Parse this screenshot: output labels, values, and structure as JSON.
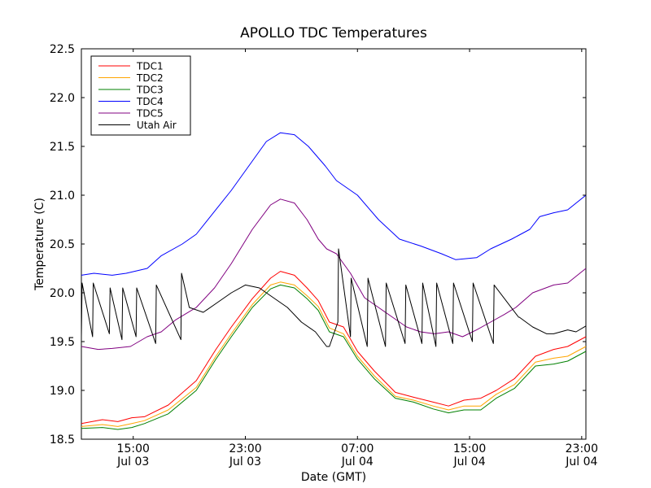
{
  "chart_data": {
    "type": "line",
    "title": "APOLLO TDC Temperatures",
    "xlabel": "Date (GMT)",
    "ylabel": "Temperature (C)",
    "ylim": [
      18.5,
      22.5
    ],
    "xlim": [
      11.3,
      47.3
    ],
    "x_units": "hours since Jul 03 00:00 GMT",
    "grid": false,
    "legend_position": "top-left",
    "y_ticks": [
      {
        "value": 18.5,
        "label": "18.5"
      },
      {
        "value": 19.0,
        "label": "19.0"
      },
      {
        "value": 19.5,
        "label": "19.5"
      },
      {
        "value": 20.0,
        "label": "20.0"
      },
      {
        "value": 20.5,
        "label": "20.5"
      },
      {
        "value": 21.0,
        "label": "21.0"
      },
      {
        "value": 21.5,
        "label": "21.5"
      },
      {
        "value": 22.0,
        "label": "22.0"
      },
      {
        "value": 22.5,
        "label": "22.5"
      }
    ],
    "x_ticks": [
      {
        "value": 15,
        "label": "15:00",
        "sublabel": "Jul 03"
      },
      {
        "value": 23,
        "label": "23:00",
        "sublabel": "Jul 03"
      },
      {
        "value": 31,
        "label": "07:00",
        "sublabel": "Jul 04"
      },
      {
        "value": 39,
        "label": "15:00",
        "sublabel": "Jul 04"
      },
      {
        "value": 47,
        "label": "23:00",
        "sublabel": "Jul 04"
      }
    ],
    "series": [
      {
        "name": "TDC1",
        "color": "#ff0000",
        "x": [
          11.3,
          12.8,
          13.9,
          14.9,
          15.8,
          17.5,
          19.5,
          20.9,
          22.0,
          23.5,
          24.8,
          25.5,
          26.5,
          27.4,
          28.2,
          29.0,
          30.0,
          31.0,
          32.2,
          33.7,
          35.0,
          36.4,
          37.5,
          38.6,
          39.8,
          40.9,
          42.2,
          43.7,
          45.0,
          46.0,
          47.3
        ],
        "y": [
          18.66,
          18.7,
          18.68,
          18.72,
          18.73,
          18.85,
          19.1,
          19.42,
          19.65,
          19.94,
          20.15,
          20.22,
          20.18,
          20.05,
          19.92,
          19.7,
          19.65,
          19.4,
          19.2,
          18.98,
          18.93,
          18.88,
          18.84,
          18.9,
          18.92,
          19.0,
          19.12,
          19.35,
          19.42,
          19.45,
          19.55
        ]
      },
      {
        "name": "TDC2",
        "color": "#ffa500",
        "x": [
          11.3,
          12.8,
          13.9,
          14.9,
          15.8,
          17.5,
          19.5,
          20.9,
          22.0,
          23.5,
          24.8,
          25.5,
          26.5,
          27.4,
          28.2,
          29.0,
          30.0,
          31.0,
          32.2,
          33.7,
          35.0,
          36.4,
          37.5,
          38.6,
          39.8,
          40.9,
          42.2,
          43.7,
          45.0,
          46.0,
          47.3
        ],
        "y": [
          18.63,
          18.65,
          18.63,
          18.66,
          18.69,
          18.8,
          19.03,
          19.35,
          19.58,
          19.88,
          20.08,
          20.11,
          20.08,
          19.97,
          19.86,
          19.64,
          19.58,
          19.35,
          19.15,
          18.94,
          18.9,
          18.84,
          18.8,
          18.84,
          18.84,
          18.96,
          19.06,
          19.29,
          19.33,
          19.35,
          19.45
        ]
      },
      {
        "name": "TDC3",
        "color": "#008000",
        "x": [
          11.3,
          12.8,
          13.9,
          14.9,
          15.8,
          17.5,
          19.5,
          20.9,
          22.0,
          23.5,
          24.8,
          25.5,
          26.5,
          27.4,
          28.2,
          29.0,
          30.0,
          31.0,
          32.2,
          33.7,
          35.0,
          36.4,
          37.5,
          38.6,
          39.8,
          40.9,
          42.2,
          43.7,
          45.0,
          46.0,
          47.3
        ],
        "y": [
          18.61,
          18.62,
          18.6,
          18.62,
          18.66,
          18.76,
          19.0,
          19.32,
          19.55,
          19.85,
          20.04,
          20.08,
          20.05,
          19.94,
          19.82,
          19.6,
          19.55,
          19.32,
          19.12,
          18.92,
          18.88,
          18.81,
          18.77,
          18.8,
          18.8,
          18.92,
          19.02,
          19.25,
          19.27,
          19.3,
          19.4
        ]
      },
      {
        "name": "TDC4",
        "color": "#0000ff",
        "x": [
          11.3,
          12.2,
          13.5,
          14.5,
          16.0,
          17.0,
          18.5,
          19.5,
          20.5,
          22.0,
          23.5,
          24.5,
          25.5,
          26.5,
          27.5,
          28.7,
          29.5,
          31.0,
          32.5,
          34.0,
          35.5,
          37.0,
          38.0,
          39.5,
          40.5,
          42.0,
          43.3,
          44.0,
          45.0,
          46.0,
          47.3
        ],
        "y": [
          20.18,
          20.2,
          20.18,
          20.2,
          20.25,
          20.38,
          20.5,
          20.6,
          20.78,
          21.05,
          21.35,
          21.55,
          21.64,
          21.62,
          21.5,
          21.3,
          21.15,
          21.0,
          20.75,
          20.55,
          20.48,
          20.4,
          20.34,
          20.36,
          20.45,
          20.55,
          20.65,
          20.78,
          20.82,
          20.85,
          21.0
        ]
      },
      {
        "name": "TDC5",
        "color": "#800080",
        "x": [
          11.3,
          12.5,
          13.5,
          14.8,
          16.0,
          17.0,
          18.0,
          19.5,
          20.8,
          22.0,
          23.5,
          24.8,
          25.5,
          26.5,
          27.4,
          28.2,
          28.8,
          29.5,
          30.5,
          31.5,
          32.5,
          33.5,
          34.5,
          35.5,
          36.5,
          37.5,
          38.5,
          39.5,
          40.5,
          41.5,
          42.3,
          43.5,
          45.0,
          46.0,
          47.3
        ],
        "y": [
          19.45,
          19.42,
          19.43,
          19.45,
          19.55,
          19.6,
          19.72,
          19.85,
          20.05,
          20.3,
          20.65,
          20.9,
          20.96,
          20.92,
          20.75,
          20.55,
          20.45,
          20.4,
          20.2,
          19.95,
          19.85,
          19.75,
          19.65,
          19.6,
          19.58,
          19.6,
          19.55,
          19.62,
          19.7,
          19.78,
          19.85,
          20.0,
          20.08,
          20.1,
          20.25
        ]
      },
      {
        "name": "Utah Air",
        "color": "#000000",
        "x": [
          11.3,
          11.35,
          12.1,
          12.15,
          13.3,
          13.35,
          14.2,
          14.25,
          15.2,
          15.25,
          16.6,
          16.65,
          18.4,
          18.45,
          19.0,
          20.0,
          21.0,
          22.0,
          23.0,
          24.0,
          25.0,
          26.0,
          27.0,
          28.0,
          28.8,
          29.0,
          29.6,
          29.65,
          30.5,
          30.55,
          31.7,
          31.75,
          33.0,
          33.05,
          34.4,
          34.45,
          35.6,
          35.65,
          36.6,
          36.65,
          37.8,
          37.85,
          39.2,
          39.25,
          40.7,
          40.75,
          42.5,
          42.55,
          43.5,
          44.5,
          45.0,
          46.0,
          46.6,
          47.3
        ],
        "y": [
          19.55,
          20.1,
          19.55,
          20.1,
          19.58,
          20.05,
          19.52,
          20.05,
          19.55,
          20.05,
          19.48,
          20.08,
          19.52,
          20.2,
          19.85,
          19.8,
          19.9,
          20.0,
          20.08,
          20.05,
          19.95,
          19.85,
          19.7,
          19.6,
          19.45,
          19.45,
          19.7,
          20.45,
          19.55,
          20.15,
          19.45,
          20.15,
          19.45,
          20.1,
          19.48,
          20.08,
          19.48,
          20.1,
          19.45,
          20.1,
          19.48,
          20.1,
          19.5,
          20.1,
          19.48,
          20.08,
          19.75,
          19.75,
          19.65,
          19.58,
          19.58,
          19.62,
          19.6,
          19.66
        ]
      }
    ]
  }
}
